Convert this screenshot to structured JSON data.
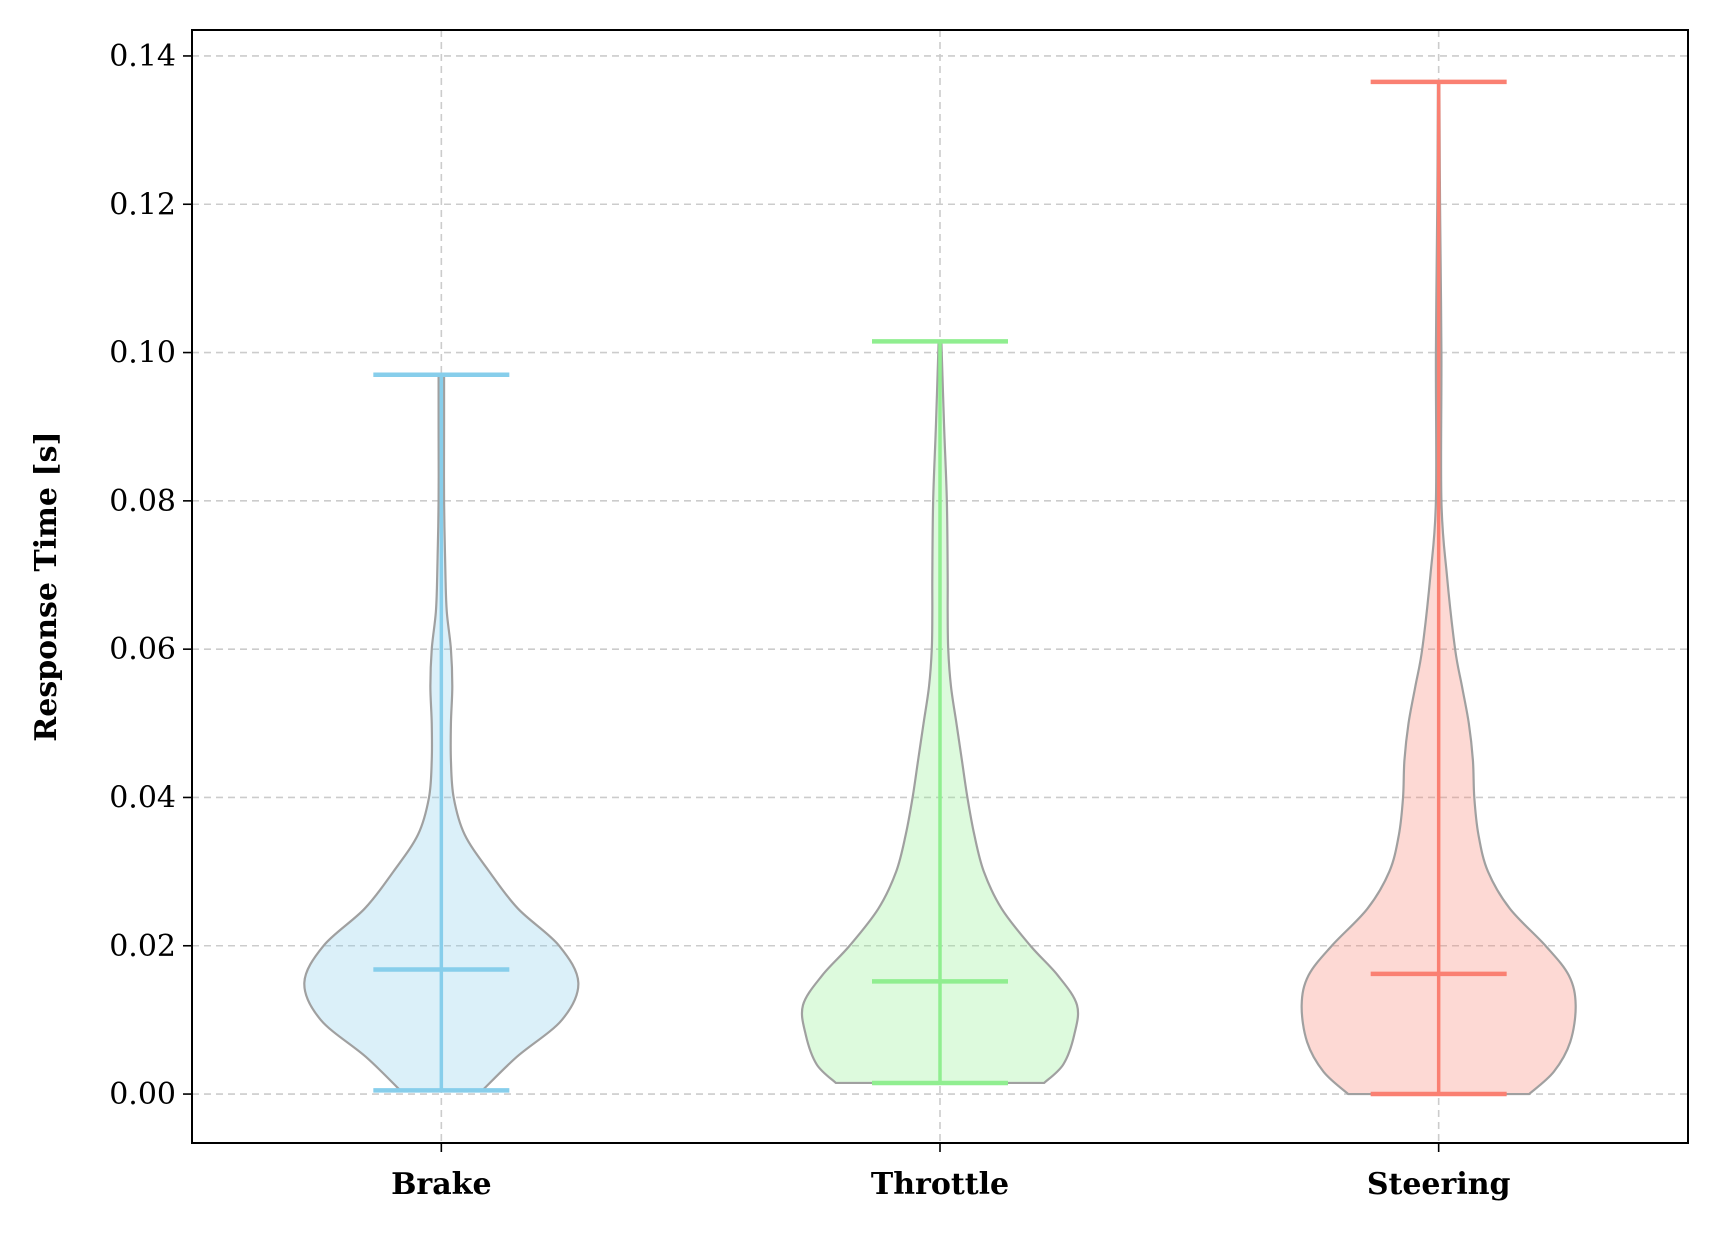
{
  "chart_data": {
    "type": "violin",
    "title": "",
    "xlabel": "",
    "ylabel": "Response Time [s]",
    "ylim": [
      -0.0066,
      0.1435
    ],
    "yticks": [
      0.0,
      0.02,
      0.04,
      0.06,
      0.08,
      0.1,
      0.12,
      0.14
    ],
    "ytick_labels": [
      "0.00",
      "0.02",
      "0.04",
      "0.06",
      "0.08",
      "0.10",
      "0.12",
      "0.14"
    ],
    "grid": true,
    "categories": [
      "Brake",
      "Throttle",
      "Steering"
    ],
    "series": [
      {
        "category": "Brake",
        "color": "#87ceeb",
        "min": 0.0005,
        "median": 0.0168,
        "max": 0.097,
        "density_profile": [
          [
            0.0005,
            0.3
          ],
          [
            0.005,
            0.55
          ],
          [
            0.01,
            0.88
          ],
          [
            0.015,
            1.0
          ],
          [
            0.02,
            0.86
          ],
          [
            0.025,
            0.56
          ],
          [
            0.03,
            0.35
          ],
          [
            0.035,
            0.17
          ],
          [
            0.04,
            0.09
          ],
          [
            0.045,
            0.07
          ],
          [
            0.05,
            0.07
          ],
          [
            0.055,
            0.08
          ],
          [
            0.06,
            0.07
          ],
          [
            0.065,
            0.04
          ],
          [
            0.07,
            0.03
          ],
          [
            0.08,
            0.02
          ],
          [
            0.09,
            0.02
          ],
          [
            0.097,
            0.02
          ]
        ]
      },
      {
        "category": "Throttle",
        "color": "#90ee90",
        "min": 0.0015,
        "median": 0.0152,
        "max": 0.1015,
        "density_profile": [
          [
            0.0015,
            0.76
          ],
          [
            0.004,
            0.9
          ],
          [
            0.008,
            0.98
          ],
          [
            0.012,
            1.0
          ],
          [
            0.016,
            0.86
          ],
          [
            0.02,
            0.66
          ],
          [
            0.025,
            0.45
          ],
          [
            0.03,
            0.32
          ],
          [
            0.035,
            0.25
          ],
          [
            0.04,
            0.2
          ],
          [
            0.045,
            0.16
          ],
          [
            0.05,
            0.12
          ],
          [
            0.055,
            0.08
          ],
          [
            0.06,
            0.06
          ],
          [
            0.065,
            0.056
          ],
          [
            0.07,
            0.056
          ],
          [
            0.08,
            0.05
          ],
          [
            0.09,
            0.03
          ],
          [
            0.1015,
            0.01
          ]
        ]
      },
      {
        "category": "Steering",
        "color": "#fa8072",
        "min": 0.0,
        "median": 0.0162,
        "max": 0.1365,
        "density_profile": [
          [
            0.0,
            0.66
          ],
          [
            0.003,
            0.84
          ],
          [
            0.007,
            0.96
          ],
          [
            0.012,
            1.0
          ],
          [
            0.016,
            0.95
          ],
          [
            0.02,
            0.78
          ],
          [
            0.025,
            0.52
          ],
          [
            0.03,
            0.36
          ],
          [
            0.035,
            0.29
          ],
          [
            0.04,
            0.26
          ],
          [
            0.045,
            0.25
          ],
          [
            0.05,
            0.22
          ],
          [
            0.055,
            0.17
          ],
          [
            0.06,
            0.12
          ],
          [
            0.07,
            0.06
          ],
          [
            0.08,
            0.02
          ],
          [
            0.1,
            0.02
          ],
          [
            0.12,
            0.01
          ],
          [
            0.1365,
            0.005
          ]
        ]
      }
    ]
  }
}
